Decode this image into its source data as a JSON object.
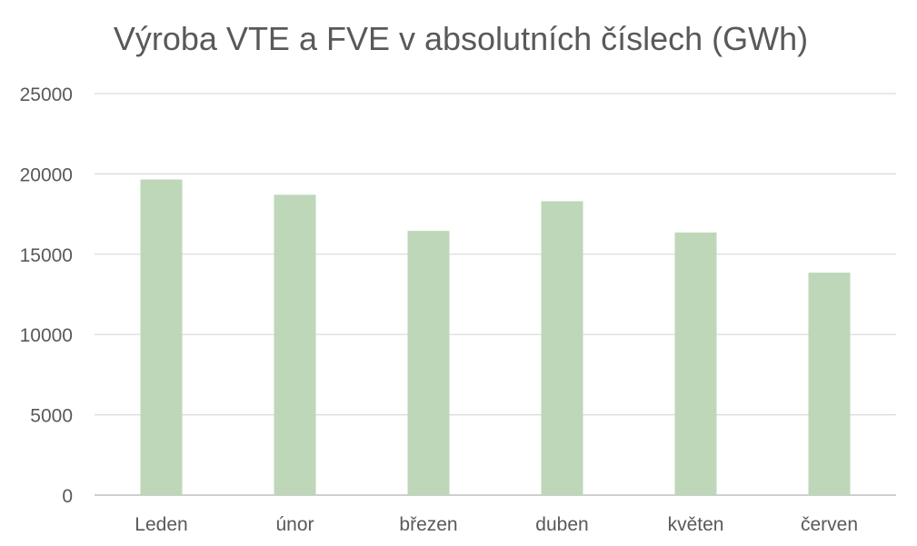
{
  "chart_data": {
    "type": "bar",
    "title": "Výroba VTE a FVE v absolutních číslech (GWh)",
    "xlabel": "",
    "ylabel": "",
    "categories": [
      "Leden",
      "únor",
      "březen",
      "duben",
      "květen",
      "červen"
    ],
    "series": [
      {
        "values": [
          19650,
          18700,
          16450,
          18300,
          16350,
          13850
        ]
      }
    ],
    "ylim": [
      0,
      25000
    ],
    "yticks": [
      "0",
      "5000",
      "10000",
      "15000",
      "20000",
      "25000"
    ],
    "grid": true,
    "legend": "none"
  },
  "colors": {
    "bar": "#bdd7b8",
    "grid": "#d9d9d9",
    "axis": "#bfbfbf",
    "text": "#595959"
  }
}
